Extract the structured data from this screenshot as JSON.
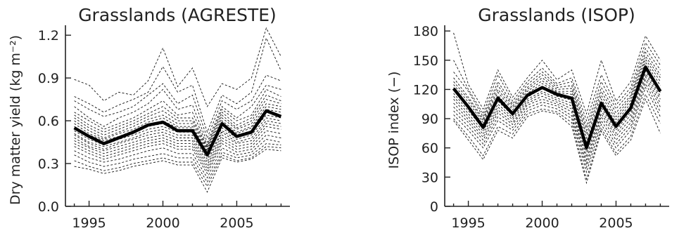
{
  "chart_data": [
    {
      "type": "line",
      "title": "Grasslands (AGRESTE)",
      "xlabel": "",
      "ylabel": "Dry matter yield (kg m⁻²)",
      "xlim": [
        1993.4,
        2008.6
      ],
      "ylim": [
        0.0,
        1.25
      ],
      "xticks": [
        1995,
        2000,
        2005
      ],
      "xtick_labels": [
        "1995",
        "2000",
        "2005"
      ],
      "yticks": [
        0.0,
        0.3,
        0.6,
        0.9,
        1.2
      ],
      "ytick_labels": [
        "0.0",
        "0.3",
        "0.6",
        "0.9",
        "1.2"
      ],
      "grid": false,
      "x": [
        1994,
        1995,
        1996,
        1997,
        1998,
        1999,
        2000,
        2001,
        2002,
        2003,
        2004,
        2005,
        2006,
        2007,
        2008
      ],
      "series": [
        {
          "name": "",
          "style": "mean",
          "values": [
            0.55,
            0.49,
            0.44,
            0.48,
            0.52,
            0.57,
            0.59,
            0.53,
            0.53,
            0.36,
            0.58,
            0.49,
            0.52,
            0.67,
            0.63
          ]
        },
        {
          "name": "",
          "style": "site",
          "values": [
            0.89,
            0.85,
            0.74,
            0.8,
            0.78,
            0.88,
            1.11,
            0.84,
            0.97,
            0.7,
            0.86,
            0.82,
            0.9,
            1.25,
            1.05
          ]
        },
        {
          "name": "",
          "style": "site",
          "values": [
            0.77,
            0.72,
            0.66,
            0.71,
            0.75,
            0.8,
            0.98,
            0.8,
            0.85,
            0.52,
            0.78,
            0.72,
            0.8,
            1.18,
            0.95
          ]
        },
        {
          "name": "",
          "style": "site",
          "values": [
            0.74,
            0.68,
            0.63,
            0.66,
            0.7,
            0.78,
            0.86,
            0.72,
            0.78,
            0.48,
            0.74,
            0.68,
            0.74,
            0.92,
            0.88
          ]
        },
        {
          "name": "",
          "style": "site",
          "values": [
            0.7,
            0.62,
            0.56,
            0.62,
            0.66,
            0.72,
            0.82,
            0.68,
            0.71,
            0.45,
            0.7,
            0.62,
            0.7,
            0.85,
            0.82
          ]
        },
        {
          "name": "",
          "style": "site",
          "values": [
            0.66,
            0.6,
            0.54,
            0.58,
            0.62,
            0.68,
            0.74,
            0.64,
            0.66,
            0.43,
            0.68,
            0.6,
            0.64,
            0.82,
            0.77
          ]
        },
        {
          "name": "",
          "style": "site",
          "values": [
            0.64,
            0.57,
            0.52,
            0.56,
            0.6,
            0.65,
            0.7,
            0.62,
            0.62,
            0.42,
            0.66,
            0.57,
            0.62,
            0.78,
            0.74
          ]
        },
        {
          "name": "",
          "style": "site",
          "values": [
            0.62,
            0.55,
            0.5,
            0.54,
            0.58,
            0.63,
            0.67,
            0.6,
            0.6,
            0.41,
            0.64,
            0.55,
            0.6,
            0.75,
            0.72
          ]
        },
        {
          "name": "",
          "style": "site",
          "values": [
            0.6,
            0.53,
            0.48,
            0.52,
            0.56,
            0.61,
            0.64,
            0.58,
            0.58,
            0.4,
            0.62,
            0.54,
            0.58,
            0.72,
            0.7
          ]
        },
        {
          "name": "",
          "style": "site",
          "values": [
            0.58,
            0.51,
            0.47,
            0.51,
            0.54,
            0.59,
            0.62,
            0.56,
            0.56,
            0.39,
            0.6,
            0.52,
            0.56,
            0.7,
            0.68
          ]
        },
        {
          "name": "",
          "style": "site",
          "values": [
            0.56,
            0.5,
            0.46,
            0.49,
            0.53,
            0.57,
            0.6,
            0.55,
            0.55,
            0.38,
            0.59,
            0.51,
            0.55,
            0.68,
            0.66
          ]
        },
        {
          "name": "",
          "style": "site",
          "values": [
            0.55,
            0.48,
            0.45,
            0.48,
            0.51,
            0.56,
            0.58,
            0.53,
            0.53,
            0.37,
            0.57,
            0.5,
            0.53,
            0.66,
            0.64
          ]
        },
        {
          "name": "",
          "style": "site",
          "values": [
            0.53,
            0.47,
            0.43,
            0.47,
            0.5,
            0.54,
            0.56,
            0.52,
            0.52,
            0.35,
            0.55,
            0.48,
            0.52,
            0.64,
            0.62
          ]
        },
        {
          "name": "",
          "style": "site",
          "values": [
            0.51,
            0.45,
            0.42,
            0.45,
            0.48,
            0.52,
            0.54,
            0.5,
            0.5,
            0.33,
            0.53,
            0.47,
            0.5,
            0.62,
            0.6
          ]
        },
        {
          "name": "",
          "style": "site",
          "values": [
            0.5,
            0.44,
            0.4,
            0.44,
            0.47,
            0.5,
            0.52,
            0.48,
            0.48,
            0.31,
            0.52,
            0.45,
            0.48,
            0.6,
            0.58
          ]
        },
        {
          "name": "",
          "style": "site",
          "values": [
            0.48,
            0.42,
            0.39,
            0.42,
            0.45,
            0.48,
            0.5,
            0.46,
            0.46,
            0.29,
            0.5,
            0.44,
            0.46,
            0.58,
            0.56
          ]
        },
        {
          "name": "",
          "style": "site",
          "values": [
            0.46,
            0.41,
            0.37,
            0.4,
            0.43,
            0.46,
            0.48,
            0.44,
            0.44,
            0.27,
            0.48,
            0.42,
            0.44,
            0.56,
            0.54
          ]
        },
        {
          "name": "",
          "style": "site",
          "values": [
            0.44,
            0.39,
            0.35,
            0.38,
            0.41,
            0.44,
            0.46,
            0.42,
            0.42,
            0.25,
            0.46,
            0.4,
            0.42,
            0.53,
            0.51
          ]
        },
        {
          "name": "",
          "style": "site",
          "values": [
            0.42,
            0.37,
            0.33,
            0.36,
            0.39,
            0.42,
            0.44,
            0.4,
            0.4,
            0.23,
            0.44,
            0.38,
            0.4,
            0.5,
            0.48
          ]
        },
        {
          "name": "",
          "style": "site",
          "values": [
            0.39,
            0.34,
            0.31,
            0.33,
            0.36,
            0.39,
            0.41,
            0.37,
            0.37,
            0.2,
            0.41,
            0.36,
            0.38,
            0.47,
            0.45
          ]
        },
        {
          "name": "",
          "style": "site",
          "values": [
            0.36,
            0.31,
            0.28,
            0.3,
            0.33,
            0.35,
            0.37,
            0.34,
            0.34,
            0.17,
            0.38,
            0.34,
            0.36,
            0.44,
            0.43
          ]
        },
        {
          "name": "",
          "style": "site",
          "values": [
            0.32,
            0.28,
            0.25,
            0.27,
            0.3,
            0.32,
            0.34,
            0.31,
            0.31,
            0.14,
            0.36,
            0.32,
            0.34,
            0.42,
            0.41
          ]
        },
        {
          "name": "",
          "style": "site",
          "values": [
            0.28,
            0.26,
            0.23,
            0.25,
            0.28,
            0.3,
            0.32,
            0.29,
            0.29,
            0.1,
            0.34,
            0.31,
            0.33,
            0.4,
            0.39
          ]
        }
      ]
    },
    {
      "type": "line",
      "title": "Grasslands (ISOP)",
      "xlabel": "",
      "ylabel": "ISOP index (−)",
      "xlim": [
        1993.4,
        2008.6
      ],
      "ylim": [
        0,
        183
      ],
      "xticks": [
        1995,
        2000,
        2005
      ],
      "xtick_labels": [
        "1995",
        "2000",
        "2005"
      ],
      "yticks": [
        0,
        30,
        60,
        90,
        120,
        150,
        180
      ],
      "ytick_labels": [
        "0",
        "30",
        "60",
        "90",
        "120",
        "150",
        "180"
      ],
      "grid": false,
      "x": [
        1994,
        1995,
        1996,
        1997,
        1998,
        1999,
        2000,
        2001,
        2002,
        2003,
        2004,
        2005,
        2006,
        2007,
        2008
      ],
      "series": [
        {
          "name": "",
          "style": "mean",
          "values": [
            121,
            102,
            81,
            111,
            95,
            114,
            122,
            115,
            111,
            60,
            106,
            82,
            101,
            143,
            118
          ]
        },
        {
          "name": "",
          "style": "site",
          "values": [
            178,
            125,
            100,
            140,
            112,
            132,
            150,
            130,
            140,
            95,
            150,
            108,
            128,
            175,
            150
          ]
        },
        {
          "name": "",
          "style": "site",
          "values": [
            150,
            120,
            95,
            135,
            108,
            128,
            142,
            126,
            132,
            88,
            135,
            104,
            122,
            168,
            145
          ]
        },
        {
          "name": "",
          "style": "site",
          "values": [
            138,
            118,
            92,
            128,
            105,
            125,
            138,
            124,
            128,
            82,
            128,
            100,
            118,
            162,
            140
          ]
        },
        {
          "name": "",
          "style": "site",
          "values": [
            132,
            112,
            90,
            124,
            103,
            122,
            135,
            122,
            124,
            78,
            122,
            96,
            114,
            158,
            135
          ]
        },
        {
          "name": "",
          "style": "site",
          "values": [
            128,
            110,
            88,
            120,
            101,
            120,
            132,
            120,
            121,
            74,
            118,
            92,
            112,
            154,
            132
          ]
        },
        {
          "name": "",
          "style": "site",
          "values": [
            125,
            107,
            86,
            117,
            99,
            118,
            129,
            118,
            118,
            70,
            114,
            89,
            109,
            151,
            128
          ]
        },
        {
          "name": "",
          "style": "site",
          "values": [
            122,
            104,
            84,
            114,
            97,
            116,
            126,
            117,
            115,
            66,
            110,
            86,
            106,
            148,
            124
          ]
        },
        {
          "name": "",
          "style": "site",
          "values": [
            119,
            101,
            82,
            111,
            95,
            114,
            123,
            115,
            112,
            63,
            107,
            84,
            103,
            145,
            120
          ]
        },
        {
          "name": "",
          "style": "site",
          "values": [
            116,
            98,
            80,
            108,
            93,
            112,
            121,
            113,
            109,
            60,
            104,
            81,
            100,
            142,
            117
          ]
        },
        {
          "name": "",
          "style": "site",
          "values": [
            113,
            95,
            77,
            105,
            91,
            110,
            118,
            111,
            106,
            56,
            101,
            78,
            97,
            139,
            113
          ]
        },
        {
          "name": "",
          "style": "site",
          "values": [
            110,
            92,
            74,
            102,
            89,
            108,
            116,
            109,
            103,
            52,
            98,
            75,
            94,
            136,
            110
          ]
        },
        {
          "name": "",
          "style": "site",
          "values": [
            106,
            89,
            71,
            99,
            86,
            106,
            113,
            107,
            100,
            48,
            95,
            72,
            90,
            133,
            106
          ]
        },
        {
          "name": "",
          "style": "site",
          "values": [
            102,
            86,
            68,
            96,
            84,
            104,
            110,
            105,
            97,
            44,
            92,
            68,
            86,
            130,
            102
          ]
        },
        {
          "name": "",
          "style": "site",
          "values": [
            98,
            82,
            64,
            92,
            81,
            101,
            107,
            103,
            93,
            40,
            88,
            64,
            82,
            126,
            97
          ]
        },
        {
          "name": "",
          "style": "site",
          "values": [
            94,
            78,
            60,
            88,
            78,
            98,
            104,
            100,
            90,
            35,
            84,
            60,
            78,
            122,
            92
          ]
        },
        {
          "name": "",
          "style": "site",
          "values": [
            90,
            72,
            52,
            82,
            74,
            95,
            100,
            97,
            86,
            28,
            80,
            55,
            72,
            115,
            85
          ]
        },
        {
          "name": "",
          "style": "site",
          "values": [
            88,
            68,
            48,
            78,
            70,
            92,
            98,
            95,
            82,
            24,
            77,
            52,
            68,
            110,
            75
          ]
        }
      ]
    }
  ]
}
